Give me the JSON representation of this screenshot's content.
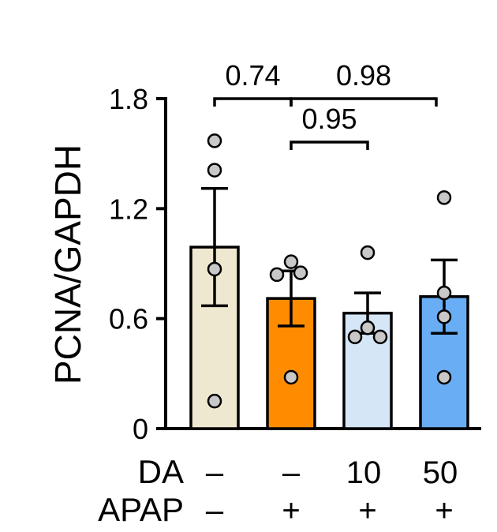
{
  "chart_data": {
    "type": "bar",
    "ylabel": "PCNA/GAPDH",
    "ylim": [
      0,
      1.8
    ],
    "yticks": [
      "0",
      "0.6",
      "1.2",
      "1.8"
    ],
    "ytick_values": [
      0,
      0.6,
      1.2,
      1.8
    ],
    "grid": false,
    "bars": [
      {
        "mean": 0.99,
        "sem": 0.32,
        "color": "#efe8d0",
        "points": [
          1.57,
          1.41,
          0.87,
          0.15
        ]
      },
      {
        "mean": 0.71,
        "sem": 0.15,
        "color": "#ff8c00",
        "points": [
          0.91,
          0.85,
          0.84,
          0.28
        ]
      },
      {
        "mean": 0.63,
        "sem": 0.11,
        "color": "#d5e6f7",
        "points": [
          0.96,
          0.55,
          0.5,
          0.5
        ]
      },
      {
        "mean": 0.72,
        "sem": 0.2,
        "color": "#69aef5",
        "points": [
          1.26,
          0.74,
          0.61,
          0.28
        ]
      }
    ],
    "row_labels": [
      {
        "label": "DA",
        "values": [
          "–",
          "–",
          "10",
          "50"
        ]
      },
      {
        "label": "APAP",
        "values": [
          "–",
          "+",
          "+",
          "+"
        ]
      }
    ],
    "comparisons": [
      {
        "from": 0,
        "to": 1,
        "p": "0.74"
      },
      {
        "from": 1,
        "to": 3,
        "p": "0.98"
      },
      {
        "from": 1,
        "to": 2,
        "p": "0.95"
      }
    ]
  }
}
